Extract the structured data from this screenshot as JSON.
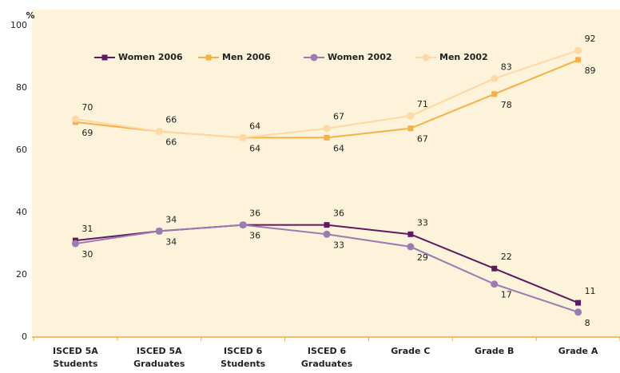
{
  "chart_data": {
    "type": "line",
    "y_axis_label": "%",
    "categories": [
      "ISCED 5A\nStudents",
      "ISCED 5A\nGraduates",
      "ISCED 6\nStudents",
      "ISCED 6\nGraduates",
      "Grade C",
      "Grade B",
      "Grade A"
    ],
    "series": [
      {
        "name": "Women 2006",
        "color": "#5e1a5f",
        "marker": "square",
        "label_position": "above",
        "values": [
          31,
          34,
          36,
          36,
          33,
          22,
          11
        ]
      },
      {
        "name": "Men 2006",
        "color": "#f6b145",
        "marker": "square",
        "label_position": "below",
        "values": [
          69,
          66,
          64,
          64,
          67,
          78,
          89
        ]
      },
      {
        "name": "Women 2002",
        "color": "#9b7bb1",
        "marker": "circle",
        "label_position": "below",
        "values": [
          30,
          34,
          36,
          33,
          29,
          17,
          8
        ]
      },
      {
        "name": "Men 2002",
        "color": "#fdd9a3",
        "marker": "circle",
        "label_position": "above",
        "values": [
          70,
          66,
          64,
          67,
          71,
          83,
          92
        ]
      }
    ],
    "ylim": [
      0,
      100
    ],
    "yticks": [
      0,
      20,
      40,
      60,
      80,
      100
    ],
    "grid": false,
    "legend": "top"
  }
}
